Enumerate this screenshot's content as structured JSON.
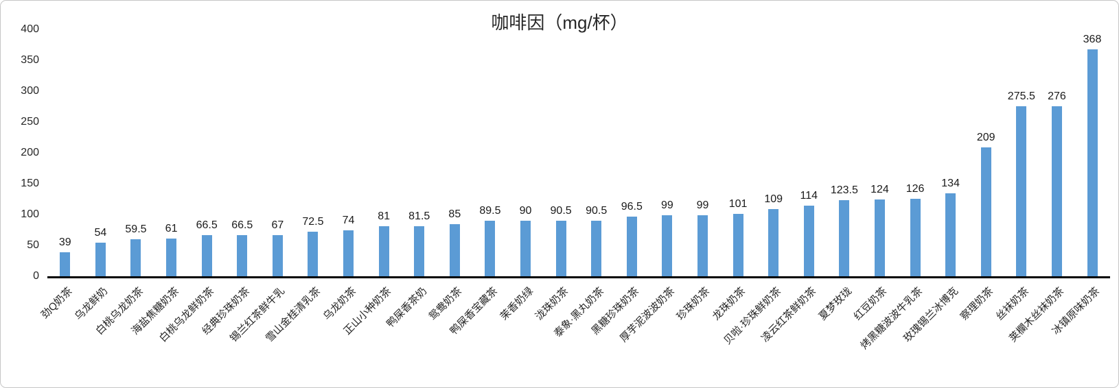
{
  "chart_data": {
    "type": "bar",
    "title": "咖啡因（mg/杯）",
    "categories": [
      "劲Q奶茶",
      "乌龙鲜奶",
      "白桃乌龙奶茶",
      "海盐焦糖奶茶",
      "白桃乌龙鲜奶茶",
      "经典珍珠奶茶",
      "锡兰红茶鲜牛乳",
      "雪山金桂清乳茶",
      "乌龙奶茶",
      "正山小种奶茶",
      "鸭屎香茶奶",
      "鸳鸯奶茶",
      "鸭屎香宝藏茶",
      "茉香奶绿",
      "泷珠奶茶",
      "泰象·黑丸奶茶",
      "黑糖珍珠奶茶",
      "厚芋泥波波奶茶",
      "珍珠奶茶",
      "龙珠奶茶",
      "贝啦·珍珠鲜奶茶",
      "凌云红茶鲜奶茶",
      "夏梦玫珑",
      "红豆奶茶",
      "烤黑糖波波牛乳茶",
      "玫瑰锡兰冰博克",
      "察理奶茶",
      "丝袜奶茶",
      "荚欄木丝袜奶茶",
      "冰镇原味奶茶"
    ],
    "values": [
      39,
      54,
      59.5,
      61,
      66.5,
      66.5,
      67,
      72.5,
      74,
      81,
      81.5,
      85,
      89.5,
      90,
      90.5,
      90.5,
      96.5,
      99,
      99,
      101,
      109,
      114,
      123.5,
      124,
      126,
      134,
      209,
      275.5,
      276,
      368
    ],
    "xlabel": "",
    "ylabel": "",
    "ylim": [
      0,
      400
    ],
    "y_ticks": [
      400,
      350,
      300,
      250,
      200,
      150,
      100,
      50,
      0
    ],
    "grid": false,
    "legend": false,
    "bar_color": "#5B9BD5",
    "axis_line_color": "#000000",
    "text_color": "#262626",
    "border_color": "#c6c6c6",
    "background_color": "#ffffff"
  }
}
